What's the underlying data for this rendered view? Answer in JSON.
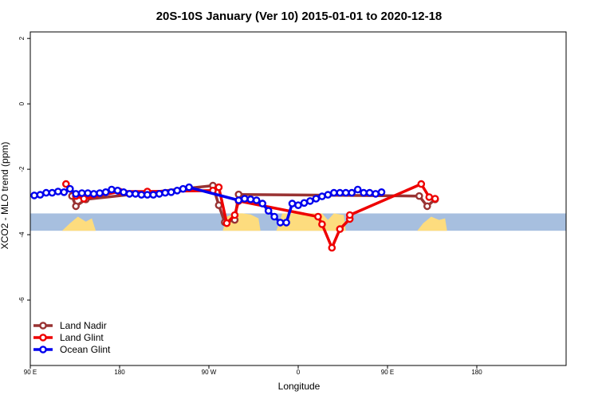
{
  "chart_data": {
    "type": "line",
    "title": "20S-10S January (Ver 10)   2015-01-01 to 2020-12-18",
    "xlabel": "Longitude",
    "ylabel": "XCO2 - MLO trend (ppm)",
    "xlim": [
      -90,
      180
    ],
    "ylim": [
      -8,
      2.2
    ],
    "x_ticks": [
      {
        "value": -90,
        "label": "90 E"
      },
      {
        "value": -45,
        "label": "180"
      },
      {
        "value": 0,
        "label": "90 W"
      },
      {
        "value": 45,
        "label": "0"
      },
      {
        "value": 90,
        "label": "90 E"
      },
      {
        "value": 135,
        "label": "180"
      }
    ],
    "y_ticks": [
      {
        "value": 2,
        "label": "2"
      },
      {
        "value": 0,
        "label": "0"
      },
      {
        "value": -2,
        "label": "-2"
      },
      {
        "value": -4,
        "label": "-4"
      },
      {
        "value": -6,
        "label": "-6"
      }
    ],
    "band": {
      "y_top": -3.35,
      "y_bottom": -3.88,
      "ocean_color": "#a7bfdf",
      "land_color": "#fddc7e"
    },
    "land_regions": [
      {
        "x": [
          -74,
          -70,
          -66,
          -62,
          -59,
          -57
        ],
        "top": [
          -3.88,
          -3.65,
          -3.45,
          -3.6,
          -3.5,
          -3.88
        ]
      },
      {
        "x": [
          7,
          9,
          13,
          17,
          21,
          25,
          26
        ],
        "top": [
          -3.88,
          -3.45,
          -3.35,
          -3.35,
          -3.38,
          -3.5,
          -3.88
        ]
      },
      {
        "x": [
          34,
          37,
          42,
          47,
          52,
          57,
          60,
          63,
          68,
          69
        ],
        "top": [
          -3.88,
          -3.35,
          -3.35,
          -3.35,
          -3.35,
          -3.35,
          -3.55,
          -3.35,
          -3.4,
          -3.88
        ]
      },
      {
        "x": [
          105,
          108,
          112,
          116,
          119,
          120
        ],
        "top": [
          -3.88,
          -3.65,
          -3.45,
          -3.55,
          -3.5,
          -3.88
        ]
      }
    ],
    "legend_position": "bottom-left",
    "series": [
      {
        "name": "Land Nadir",
        "color": "#993333",
        "points": [
          [
            -69,
            -2.82
          ],
          [
            -67,
            -3.13
          ],
          [
            -62,
            -2.92
          ],
          [
            2,
            -2.5
          ],
          [
            5,
            -3.1
          ],
          [
            8,
            -3.62
          ],
          [
            13,
            -3.55
          ],
          [
            15,
            -2.77
          ],
          [
            106,
            -2.82
          ],
          [
            110,
            -3.13
          ],
          [
            114,
            -2.92
          ]
        ]
      },
      {
        "name": "Land Glint",
        "color": "#ee0000",
        "points": [
          [
            -72,
            -2.45
          ],
          [
            -67,
            -2.82
          ],
          [
            -63,
            -2.9
          ],
          [
            -45,
            -2.68
          ],
          [
            -31,
            -2.68
          ],
          [
            2,
            -2.65
          ],
          [
            5,
            -2.55
          ],
          [
            9,
            -3.65
          ],
          [
            13,
            -3.4
          ],
          [
            15,
            -2.97
          ],
          [
            55,
            -3.45
          ],
          [
            57,
            -3.68
          ],
          [
            62,
            -4.4
          ],
          [
            66,
            -3.83
          ],
          [
            71,
            -3.52
          ],
          [
            71,
            -3.4
          ],
          [
            107,
            -2.45
          ],
          [
            111,
            -2.85
          ],
          [
            114,
            -2.9
          ]
        ]
      },
      {
        "name": "Ocean Glint",
        "color": "#0000ee",
        "points": [
          [
            -88,
            -2.8
          ],
          [
            -85,
            -2.78
          ],
          [
            -82,
            -2.72
          ],
          [
            -79,
            -2.72
          ],
          [
            -76,
            -2.68
          ],
          [
            -73,
            -2.7
          ],
          [
            -70,
            -2.6
          ],
          [
            -67,
            -2.75
          ],
          [
            -64,
            -2.73
          ],
          [
            -61,
            -2.73
          ],
          [
            -58,
            -2.75
          ],
          [
            -55,
            -2.73
          ],
          [
            -52,
            -2.7
          ],
          [
            -49,
            -2.62
          ],
          [
            -46,
            -2.65
          ],
          [
            -43,
            -2.7
          ],
          [
            -40,
            -2.75
          ],
          [
            -37,
            -2.75
          ],
          [
            -34,
            -2.78
          ],
          [
            -31,
            -2.78
          ],
          [
            -28,
            -2.78
          ],
          [
            -25,
            -2.75
          ],
          [
            -22,
            -2.72
          ],
          [
            -19,
            -2.7
          ],
          [
            -16,
            -2.65
          ],
          [
            -13,
            -2.6
          ],
          [
            -10,
            -2.55
          ],
          [
            15,
            -2.95
          ],
          [
            18,
            -2.9
          ],
          [
            21,
            -2.92
          ],
          [
            24,
            -2.95
          ],
          [
            27,
            -3.05
          ],
          [
            30,
            -3.27
          ],
          [
            33,
            -3.45
          ],
          [
            36,
            -3.63
          ],
          [
            39,
            -3.63
          ],
          [
            42,
            -3.05
          ],
          [
            45,
            -3.1
          ],
          [
            48,
            -3.03
          ],
          [
            51,
            -2.97
          ],
          [
            54,
            -2.9
          ],
          [
            57,
            -2.83
          ],
          [
            60,
            -2.78
          ],
          [
            63,
            -2.72
          ],
          [
            66,
            -2.72
          ],
          [
            69,
            -2.72
          ],
          [
            72,
            -2.72
          ],
          [
            75,
            -2.62
          ],
          [
            78,
            -2.72
          ],
          [
            81,
            -2.72
          ],
          [
            84,
            -2.75
          ],
          [
            87,
            -2.7
          ]
        ]
      }
    ]
  }
}
